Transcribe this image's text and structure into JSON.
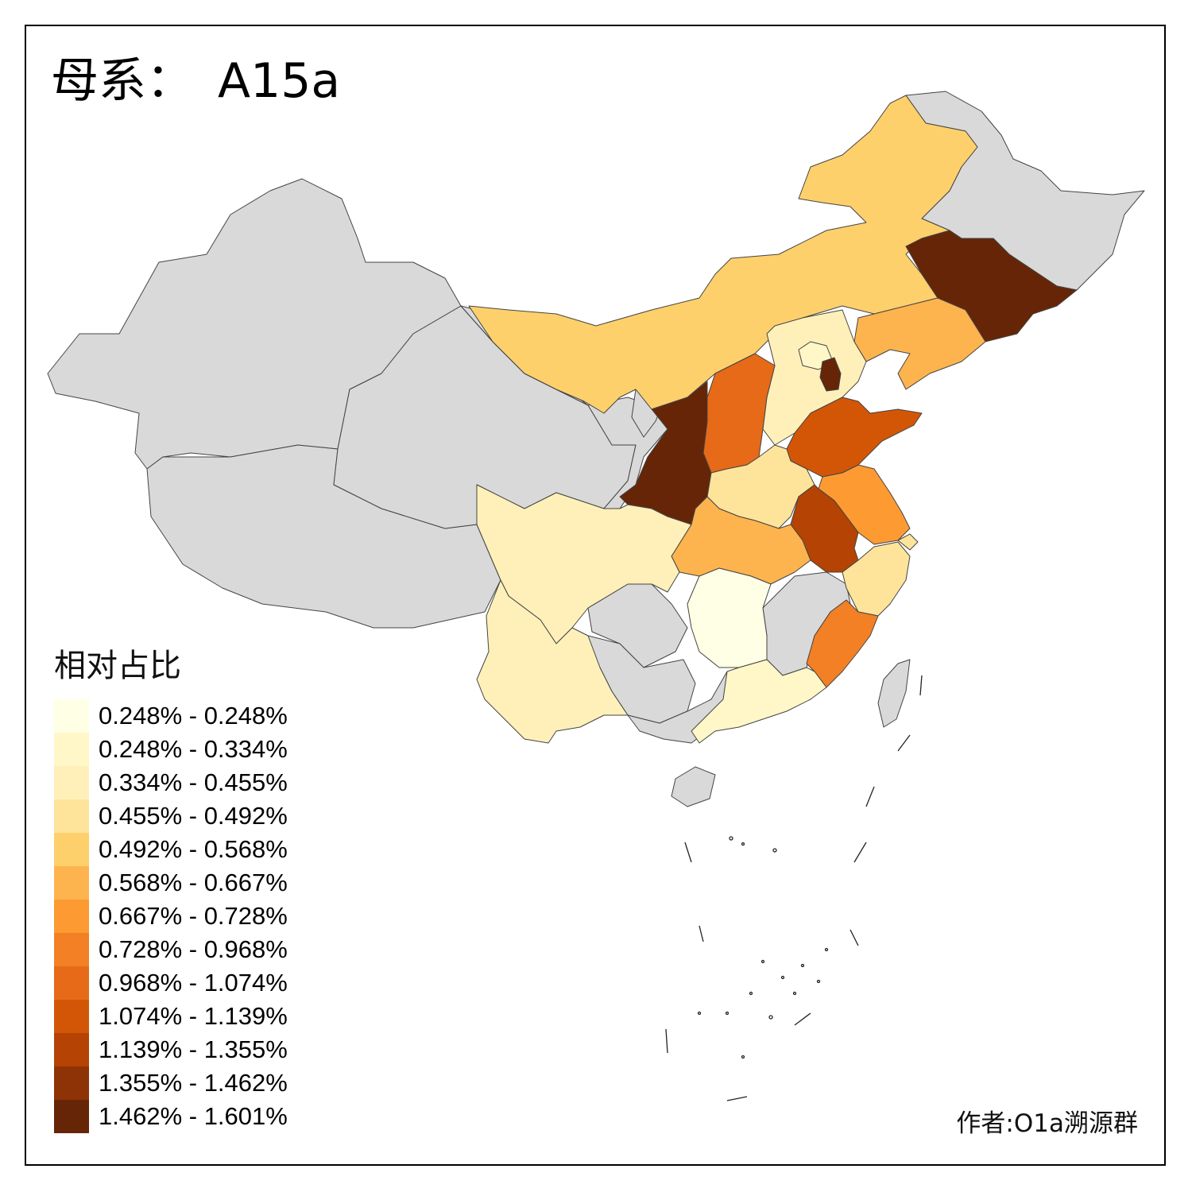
{
  "title": {
    "label": "母系：",
    "haplogroup": "A15a"
  },
  "legend": {
    "title": "相对占比",
    "items": [
      {
        "range": "0.248% - 0.248%",
        "color": "#ffffe5"
      },
      {
        "range": "0.248% - 0.334%",
        "color": "#fff7c8"
      },
      {
        "range": "0.334% - 0.455%",
        "color": "#fff0ba"
      },
      {
        "range": "0.455% - 0.492%",
        "color": "#fee49a"
      },
      {
        "range": "0.492% - 0.568%",
        "color": "#fed06c"
      },
      {
        "range": "0.568% - 0.667%",
        "color": "#feb44e"
      },
      {
        "range": "0.667% - 0.728%",
        "color": "#fd9a32"
      },
      {
        "range": "0.728% - 0.968%",
        "color": "#f38025"
      },
      {
        "range": "0.968% - 1.074%",
        "color": "#e66a17"
      },
      {
        "range": "1.074% - 1.139%",
        "color": "#d35607"
      },
      {
        "range": "1.139% - 1.355%",
        "color": "#b44304"
      },
      {
        "range": "1.355% - 1.462%",
        "color": "#8d3305"
      },
      {
        "range": "1.462% - 1.601%",
        "color": "#662506"
      }
    ]
  },
  "no_data_color": "#d9d9d9",
  "author": "作者:O1a溯源群",
  "regions": [
    {
      "id": "xinjiang",
      "class": "no-data"
    },
    {
      "id": "tibet",
      "class": "no-data"
    },
    {
      "id": "qinghai",
      "class": "no-data"
    },
    {
      "id": "gansu",
      "class": "no-data"
    },
    {
      "id": "ningxia",
      "class": "no-data"
    },
    {
      "id": "heilongjiang",
      "class": "no-data"
    },
    {
      "id": "chongqing",
      "class": "no-data"
    },
    {
      "id": "guizhou",
      "class": "no-data"
    },
    {
      "id": "guangxi",
      "class": "no-data"
    },
    {
      "id": "jiangxi",
      "class": "no-data"
    },
    {
      "id": "hainan",
      "class": "no-data"
    },
    {
      "id": "taiwan",
      "class": "no-data"
    },
    {
      "id": "inner-mongolia",
      "class": 4
    },
    {
      "id": "jilin",
      "class": 12
    },
    {
      "id": "liaoning",
      "class": 5
    },
    {
      "id": "hebei",
      "class": 2
    },
    {
      "id": "beijing",
      "class": 1
    },
    {
      "id": "tianjin",
      "class": 12
    },
    {
      "id": "shanxi",
      "class": 8
    },
    {
      "id": "shaanxi",
      "class": 12
    },
    {
      "id": "shandong",
      "class": 9
    },
    {
      "id": "henan",
      "class": 3
    },
    {
      "id": "jiangsu",
      "class": 6
    },
    {
      "id": "shanghai",
      "class": 3
    },
    {
      "id": "anhui",
      "class": 10
    },
    {
      "id": "zhejiang",
      "class": 3
    },
    {
      "id": "fujian",
      "class": 7
    },
    {
      "id": "hubei",
      "class": 5
    },
    {
      "id": "hunan",
      "class": 0
    },
    {
      "id": "guangdong",
      "class": 1
    },
    {
      "id": "sichuan",
      "class": 2
    },
    {
      "id": "yunnan",
      "class": 2
    }
  ]
}
